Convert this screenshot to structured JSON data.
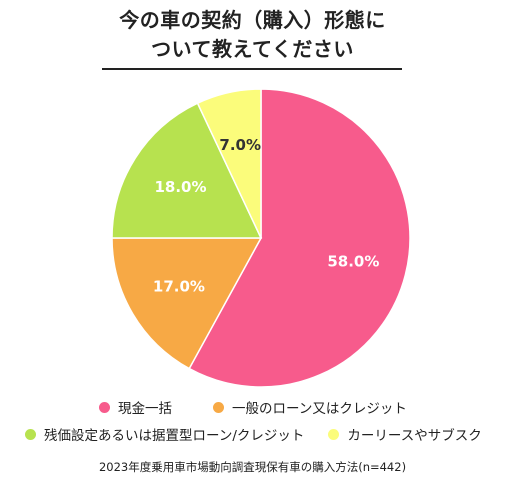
{
  "title_lines": [
    "今の車の契約（購入）形態に",
    "ついて教えてください"
  ],
  "chart_data": {
    "type": "pie",
    "slices": [
      {
        "label": "現金一括",
        "value": 58.0,
        "display": "58.0%",
        "color": "#f75b8c",
        "text_color": "#ffffff"
      },
      {
        "label": "一般のローン又はクレジット",
        "value": 17.0,
        "display": "17.0%",
        "color": "#f7a945",
        "text_color": "#ffffff"
      },
      {
        "label": "残価設定あるいは据置型ローン/クレジット",
        "value": 18.0,
        "display": "18.0%",
        "color": "#b7e24f",
        "text_color": "#ffffff"
      },
      {
        "label": "カーリースやサブスク",
        "value": 7.0,
        "display": "7.0%",
        "color": "#fbfc7b",
        "text_color": "#333333"
      }
    ],
    "start": "12 o'clock",
    "direction": "clockwise",
    "legend_position": "bottom"
  },
  "source": "2023年度乗用車市場動向調査現保有車の購入方法(n=442)"
}
